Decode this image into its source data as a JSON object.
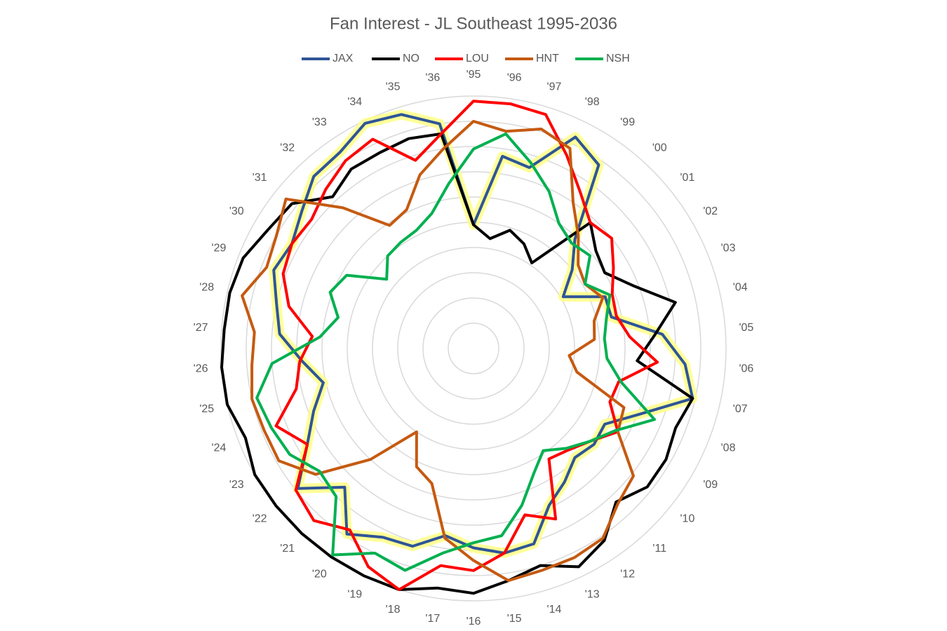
{
  "chart_data": {
    "type": "radar",
    "title": "Fan Interest - JL Southeast 1995-2036",
    "categories": [
      "'95",
      "'96",
      "'97",
      "'98",
      "'99",
      "'00",
      "'01",
      "'02",
      "'03",
      "'04",
      "'05",
      "'06",
      "'07",
      "'08",
      "'09",
      "'10",
      "'11",
      "'12",
      "'13",
      "'14",
      "'15",
      "'16",
      "'17",
      "'18",
      "'19",
      "'20",
      "'21",
      "'22",
      "'23",
      "'24",
      "'25",
      "'26",
      "'27",
      "'28",
      "'29",
      "'30",
      "'31",
      "'32",
      "'33",
      "'34",
      "'35",
      "'36"
    ],
    "ylim": [
      0,
      10
    ],
    "yticks": [
      1,
      2,
      3,
      4,
      5,
      6,
      7,
      8,
      9,
      10
    ],
    "grid": true,
    "legend": "top",
    "series": [
      {
        "name": "JAX",
        "color": "#2f5597",
        "highlight_color": "#ffff80",
        "values": [
          4.9,
          7.7,
          7.5,
          9.3,
          8.8,
          5.9,
          5.0,
          4.1,
          5.6,
          5.6,
          7.5,
          8.4,
          8.9,
          7.1,
          6.0,
          6.1,
          5.9,
          6.4,
          6.9,
          8.1,
          8.2,
          7.9,
          7.5,
          8.2,
          8.3,
          8.9,
          7.5,
          8.9,
          7.6,
          6.8,
          6.1,
          6.8,
          7.7,
          8.0,
          8.5,
          8.3,
          8.7,
          9.3,
          9.4,
          9.9,
          9.7,
          9.0
        ]
      },
      {
        "name": "NO",
        "color": "#000000",
        "values": [
          4.9,
          4.4,
          4.9,
          4.6,
          4.1,
          6.8,
          6.2,
          6.0,
          6.8,
          8.2,
          7.2,
          6.5,
          8.9,
          8.6,
          8.8,
          8.8,
          8.3,
          9.2,
          9.6,
          9.0,
          9.3,
          9.7,
          9.6,
          10.0,
          10.0,
          10.0,
          10.0,
          10.0,
          10.0,
          9.7,
          10.0,
          10.0,
          9.9,
          9.9,
          9.8,
          9.4,
          9.2,
          8.2,
          8.6,
          8.6,
          8.7,
          8.6
        ]
      },
      {
        "name": "LOU",
        "color": "#ff0000",
        "values": [
          9.8,
          9.8,
          9.7,
          8.5,
          7.5,
          6.8,
          7.0,
          6.4,
          5.9,
          5.8,
          6.2,
          7.3,
          5.9,
          5.8,
          6.6,
          5.9,
          5.5,
          5.3,
          7.5,
          6.9,
          8.2,
          8.8,
          8.7,
          10.0,
          9.6,
          8.7,
          9.3,
          9.0,
          7.6,
          8.4,
          7.2,
          6.9,
          6.4,
          7.5,
          8.1,
          8.3,
          8.2,
          8.6,
          9.0,
          9.2,
          7.8,
          8.6
        ]
      },
      {
        "name": "HNT",
        "color": "#c55a11",
        "values": [
          9.0,
          8.7,
          9.1,
          8.8,
          7.0,
          6.1,
          5.3,
          5.1,
          5.5,
          4.9,
          4.8,
          3.8,
          4.2,
          6.4,
          6.6,
          8.1,
          8.4,
          9.1,
          9.2,
          9.2,
          9.3,
          8.4,
          7.6,
          5.6,
          5.2,
          4.0,
          6.0,
          8.0,
          8.9,
          8.9,
          9.0,
          8.8,
          8.7,
          9.4,
          8.8,
          9.0,
          9.5,
          7.6,
          5.9,
          6.1,
          7.2,
          8.0
        ]
      },
      {
        "name": "NSH",
        "color": "#00b050",
        "values": [
          7.9,
          8.6,
          7.7,
          6.9,
          6.0,
          5.7,
          5.9,
          5.1,
          5.8,
          5.4,
          5.2,
          5.3,
          6.0,
          7.7,
          6.5,
          5.9,
          5.4,
          4.9,
          5.5,
          6.5,
          7.5,
          7.7,
          8.2,
          9.2,
          9.0,
          9.9,
          8.0,
          7.8,
          8.4,
          8.6,
          8.8,
          8.0,
          6.1,
          5.5,
          6.1,
          5.8,
          4.4,
          5.0,
          5.1,
          5.2,
          5.6,
          6.6
        ]
      }
    ]
  }
}
